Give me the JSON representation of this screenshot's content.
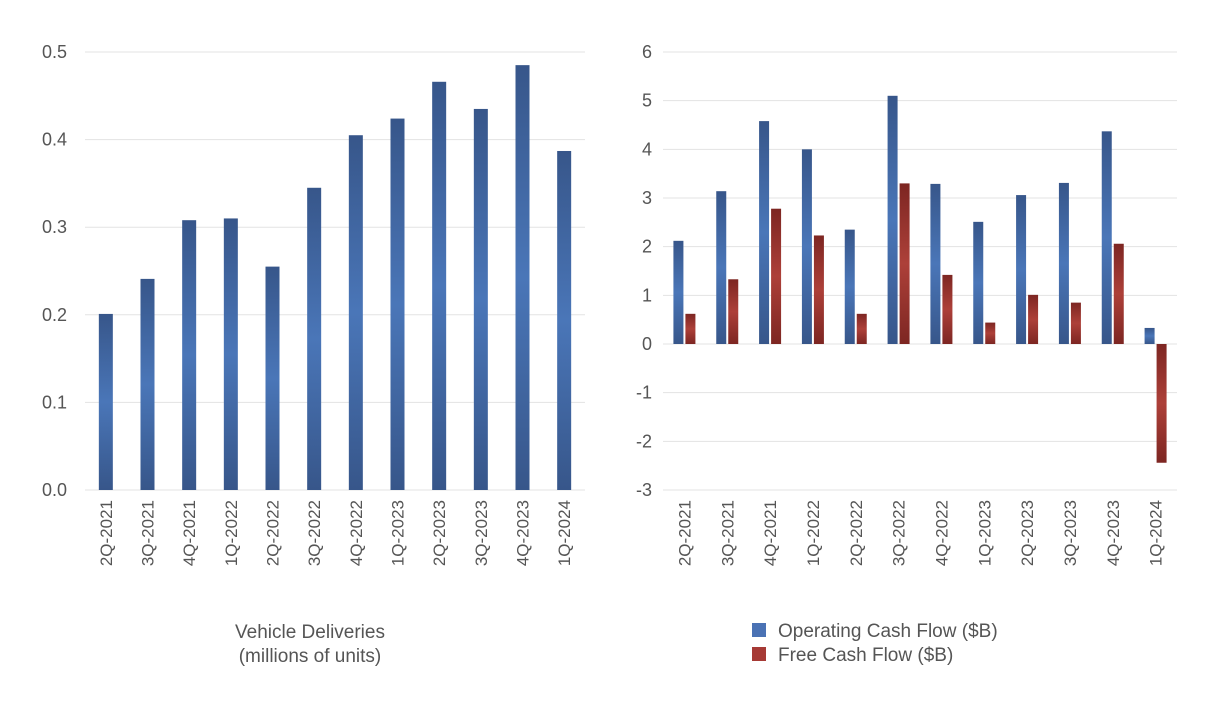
{
  "chart_data": [
    {
      "type": "bar",
      "title": "Vehicle Deliveries (millions of units)",
      "title_lines": [
        "Vehicle Deliveries",
        "(millions of units)"
      ],
      "categories": [
        "2Q-2021",
        "3Q-2021",
        "4Q-2021",
        "1Q-2022",
        "2Q-2022",
        "3Q-2022",
        "4Q-2022",
        "1Q-2023",
        "2Q-2023",
        "3Q-2023",
        "4Q-2023",
        "1Q-2024"
      ],
      "values": [
        0.201,
        0.241,
        0.308,
        0.31,
        0.255,
        0.345,
        0.405,
        0.424,
        0.466,
        0.435,
        0.485,
        0.387
      ],
      "ylim": [
        0,
        0.5
      ],
      "yticks": [
        "0.0",
        "0.1",
        "0.2",
        "0.3",
        "0.4",
        "0.5"
      ],
      "grid": true,
      "colors": {
        "bar": "#3f68a8"
      }
    },
    {
      "type": "bar",
      "categories": [
        "2Q-2021",
        "3Q-2021",
        "4Q-2021",
        "1Q-2022",
        "2Q-2022",
        "3Q-2022",
        "4Q-2022",
        "1Q-2023",
        "2Q-2023",
        "3Q-2023",
        "4Q-2023",
        "1Q-2024"
      ],
      "series": [
        {
          "name": "Operating Cash Flow ($B)",
          "color": "#4a72b4",
          "values": [
            2.12,
            3.14,
            4.58,
            4.0,
            2.35,
            5.1,
            3.29,
            2.51,
            3.06,
            3.31,
            4.37,
            0.33
          ]
        },
        {
          "name": "Free Cash Flow ($B)",
          "color": "#a63a35",
          "values": [
            0.62,
            1.33,
            2.78,
            2.23,
            0.62,
            3.3,
            1.42,
            0.44,
            1.01,
            0.85,
            2.06,
            -2.44
          ]
        }
      ],
      "ylim": [
        -3,
        6
      ],
      "yticks": [
        "-3",
        "-2",
        "-1",
        "0",
        "1",
        "2",
        "3",
        "4",
        "5",
        "6"
      ],
      "grid": true,
      "legend": "bottom"
    }
  ]
}
